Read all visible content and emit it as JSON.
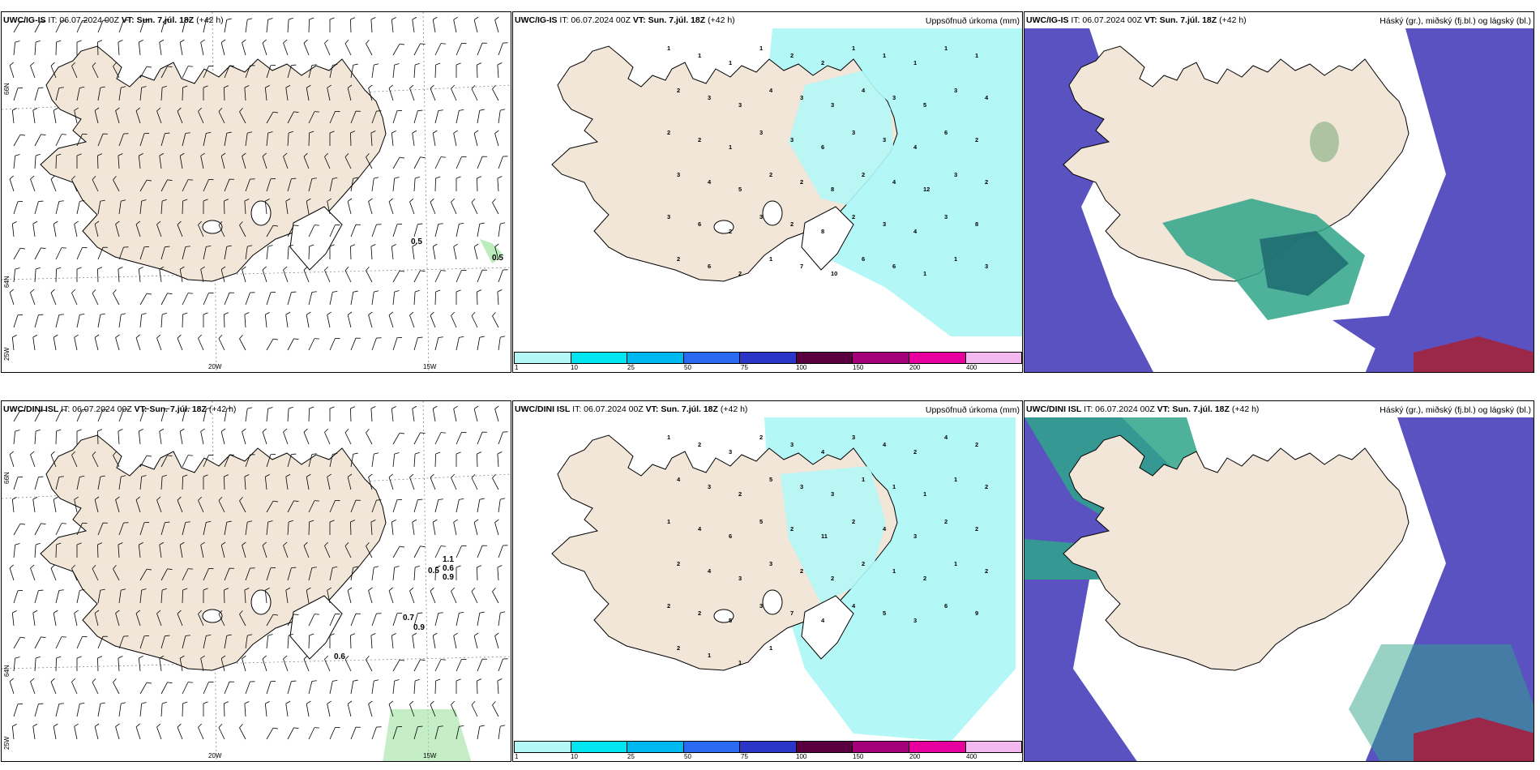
{
  "panels": [
    {
      "model": "UWC/IG-IS",
      "it": "IT: 06.07.2024 00Z",
      "vt": "VT: Sun. 7.júl. 18Z",
      "lead": "(+42 h)",
      "right_title": ""
    },
    {
      "model": "UWC/IG-IS",
      "it": "IT: 06.07.2024 00Z",
      "vt": "VT: Sun. 7.júl. 18Z",
      "lead": "(+42 h)",
      "right_title": "Uppsöfnuð úrkoma (mm)"
    },
    {
      "model": "UWC/IG-IS",
      "it": "IT: 06.07.2024 00Z",
      "vt": "VT: Sun. 7.júl. 18Z",
      "lead": "(+42 h)",
      "right_title": "Háský (gr.), miðský (fj.bl.) og lágský (bl.)"
    },
    {
      "model": "UWC/DINI ISL",
      "it": "IT: 06.07.2024 00Z",
      "vt": "VT: Sun. 7.júl. 18Z",
      "lead": "(+42 h)",
      "right_title": ""
    },
    {
      "model": "UWC/DINI ISL",
      "it": "IT: 06.07.2024 00Z",
      "vt": "VT: Sun. 7.júl. 18Z",
      "lead": "(+42 h)",
      "right_title": "Uppsöfnuð úrkoma (mm)"
    },
    {
      "model": "UWC/DINI ISL",
      "it": "IT: 06.07.2024 00Z",
      "vt": "VT: Sun. 7.júl. 18Z",
      "lead": "(+42 h)",
      "right_title": "Háský (gr.), miðský (fj.bl.) og lágský (bl.)"
    }
  ],
  "grid_labels": {
    "lat_top": "66N",
    "lat_bottom": "64N",
    "lat_bottom2": "25W",
    "lon_left": "20W",
    "lon_right": "15W"
  },
  "colorbar": {
    "labels": [
      "1",
      "10",
      "25",
      "50",
      "75",
      "100",
      "150",
      "200",
      "400"
    ],
    "colors": [
      "#b3f7f7",
      "#00e5f0",
      "#00b8f0",
      "#2a6af0",
      "#2a36c8",
      "#5a0040",
      "#a3007a",
      "#e8009e",
      "#f3b8f0"
    ]
  },
  "wind_labels_top": [
    "0.5",
    "0.5"
  ],
  "wind_labels_bottom": [
    "1.1",
    "0.6",
    "0.5",
    "0.9",
    "0.7",
    "0.9",
    "0.6"
  ],
  "precip_top": [
    "1",
    "1",
    "1",
    "1",
    "2",
    "2",
    "1",
    "1",
    "1",
    "1",
    "1",
    "2",
    "3",
    "3",
    "4",
    "3",
    "3",
    "4",
    "3",
    "5",
    "3",
    "4",
    "2",
    "2",
    "1",
    "3",
    "3",
    "6",
    "3",
    "3",
    "4",
    "6",
    "2",
    "3",
    "4",
    "5",
    "2",
    "2",
    "8",
    "2",
    "4",
    "12",
    "3",
    "2",
    "3",
    "6",
    "2",
    "3",
    "2",
    "8",
    "2",
    "3",
    "4",
    "3",
    "8",
    "2",
    "6",
    "2",
    "1",
    "7",
    "10",
    "6",
    "6",
    "1",
    "1",
    "3"
  ],
  "precip_bottom": [
    "1",
    "2",
    "3",
    "2",
    "3",
    "4",
    "3",
    "4",
    "2",
    "4",
    "2",
    "4",
    "3",
    "2",
    "5",
    "3",
    "3",
    "1",
    "1",
    "1",
    "1",
    "2",
    "1",
    "4",
    "6",
    "5",
    "2",
    "11",
    "2",
    "4",
    "3",
    "2",
    "2",
    "2",
    "4",
    "3",
    "3",
    "2",
    "2",
    "2",
    "1",
    "2",
    "1",
    "2",
    "2",
    "2",
    "5",
    "3",
    "7",
    "4",
    "4",
    "5",
    "3",
    "6",
    "9",
    "2",
    "1",
    "1",
    "1"
  ],
  "colors": {
    "land": "#f2e6d8",
    "precip_light": "#b3f7f7",
    "cloud_high": "#2fa58a",
    "cloud_mid": "#6aa06a",
    "cloud_low": "#5a52c0",
    "cloud_dark_red": "#9b2848",
    "wind_green": "#9fe3a0"
  }
}
